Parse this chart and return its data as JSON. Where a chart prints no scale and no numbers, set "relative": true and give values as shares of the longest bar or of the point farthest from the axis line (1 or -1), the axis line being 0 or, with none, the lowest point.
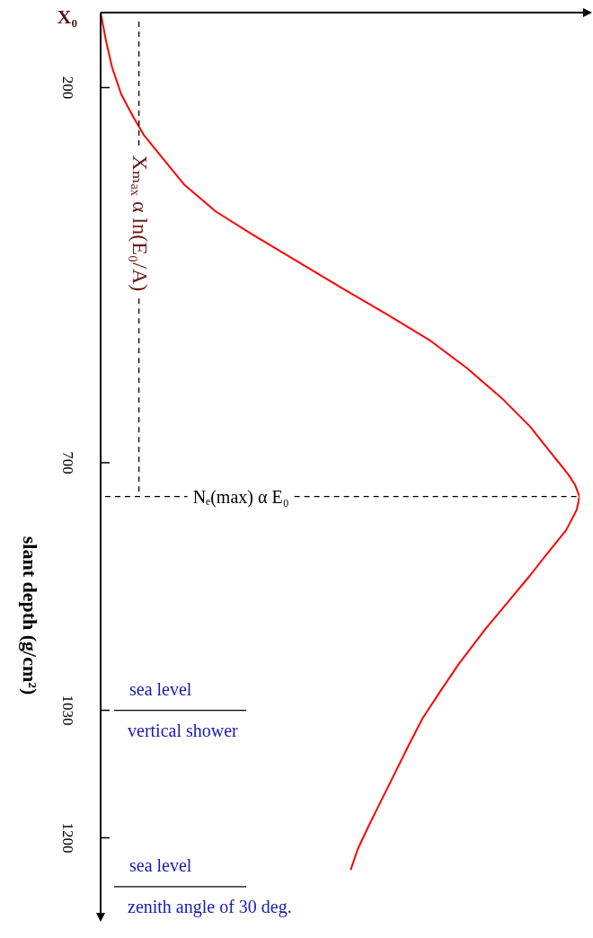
{
  "chart_data": {
    "type": "line",
    "orientation": "horizontal",
    "relative": true,
    "ylabel": "slant depth (g/cm²)",
    "x": [
      100,
      137,
      173,
      209,
      239,
      263,
      293,
      329,
      365,
      395,
      431,
      467,
      502,
      538,
      574,
      616,
      652,
      682,
      700,
      716,
      730,
      745,
      763,
      790,
      820,
      850,
      886,
      922,
      969,
      1005,
      1041,
      1077,
      1113,
      1149,
      1185,
      1215,
      1243
    ],
    "series": [
      {
        "color": "#ff0000",
        "values": [
          0,
          0.011,
          0.024,
          0.043,
          0.068,
          0.09,
          0.128,
          0.174,
          0.24,
          0.315,
          0.409,
          0.503,
          0.597,
          0.69,
          0.765,
          0.841,
          0.897,
          0.934,
          0.957,
          0.977,
          0.991,
          1,
          0.994,
          0.972,
          0.934,
          0.897,
          0.85,
          0.803,
          0.747,
          0.709,
          0.672,
          0.643,
          0.615,
          0.587,
          0.559,
          0.537,
          0.522
        ]
      }
    ],
    "ylim": [
      1300,
      100
    ],
    "yticks": [
      200,
      700,
      1030,
      1200
    ],
    "ref_lines": [
      {
        "axis": "x",
        "value": 0.08,
        "label": "Xₘₐₓ α ln(E₀/A)",
        "line_style": "dashed"
      },
      {
        "axis": "y",
        "value": 745,
        "label": "Nₑ(max) α E₀",
        "line_style": "dashed"
      },
      {
        "axis": "y",
        "value": 1030,
        "label": "sea level",
        "line_style": "solid"
      },
      {
        "axis": "y",
        "value": 1265,
        "label": "sea level",
        "line_style": "solid"
      }
    ],
    "annotations": [
      {
        "text": "X₀",
        "x": 0,
        "y": 100
      },
      "vertical shower",
      "zenith angle of 30 deg."
    ],
    "legend": false
  }
}
